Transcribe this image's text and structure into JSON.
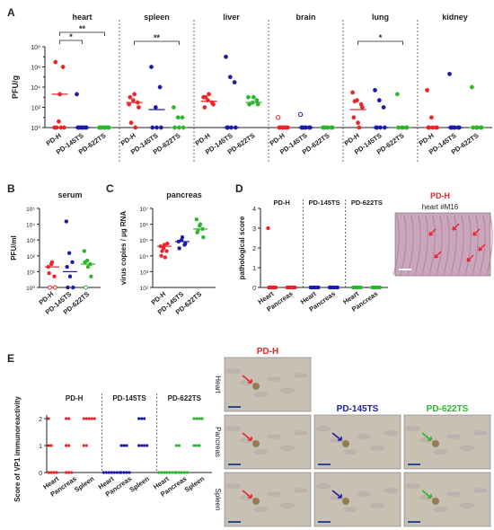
{
  "colors": {
    "red": "#e8262b",
    "blue": "#1c1ca8",
    "green": "#2fb52f",
    "axis": "#222222",
    "photo_bg": "#c9a6bc",
    "ihc_bg": "#c9c0b4"
  },
  "panels": {
    "A": "A",
    "B": "B",
    "C": "C",
    "D": "D",
    "E": "E"
  },
  "chart_data": [
    {
      "type": "scatter",
      "panel": "A",
      "ylabel": "PFU/g",
      "yscale": "log",
      "ylim": [
        1,
        100000000.0
      ],
      "y_ticks": [
        "10⁰",
        "10²",
        "10⁴",
        "10⁶",
        "10⁸"
      ],
      "y_tick_values": [
        1,
        100,
        10000,
        1000000,
        100000000
      ],
      "categories": [
        "PD-H",
        "PD-145TS",
        "PD-622TS"
      ],
      "organs": [
        {
          "name": "heart",
          "groups": [
            [
              1,
              4,
              1000000.0,
              3000000.0,
              2000.0,
              1,
              1,
              1
            ],
            [
              2000.0,
              1,
              1,
              1,
              1,
              1,
              1,
              1
            ],
            [
              1,
              1,
              1,
              1,
              1,
              1,
              1,
              1
            ]
          ],
          "medians": [
            2000.0,
            1,
            1
          ],
          "sig": [
            {
              "from": 0,
              "to": 1,
              "mark": "*"
            },
            {
              "from": 0,
              "to": 2,
              "mark": "**"
            }
          ]
        },
        {
          "name": "spleen",
          "groups": [
            [
              200.0,
              500.0,
              300.0,
              1000.0,
              2000.0,
              100.0,
              3,
              1
            ],
            [
              1000000.0,
              100.0,
              10000.0,
              1,
              1,
              1
            ],
            [
              100.0,
              10,
              10,
              1,
              1,
              1
            ]
          ],
          "medians": [
            300.0,
            60,
            1
          ],
          "sig": [
            {
              "from": 0,
              "to": 2,
              "mark": "**"
            }
          ]
        },
        {
          "name": "liver",
          "groups": [
            [
              1000.0,
              500.0,
              300.0,
              100.0,
              2000.0,
              200.0,
              1000.0
            ],
            [
              10000000.0,
              100000.0,
              30000.0,
              1,
              1,
              1,
              1
            ],
            [
              1000.0,
              300.0,
              500.0,
              200.0,
              1000.0,
              200.0
            ]
          ],
          "medians": [
            400.0,
            1,
            300.0
          ],
          "sig": []
        },
        {
          "name": "brain",
          "groups": [
            [
              10,
              1,
              1,
              1,
              1,
              1,
              1,
              1
            ],
            [
              20.0,
              1,
              1,
              1,
              1,
              1,
              1
            ],
            [
              1,
              1,
              1,
              1,
              1,
              1,
              1
            ]
          ],
          "medians": [
            1,
            1,
            1
          ],
          "sig": []
        },
        {
          "name": "lung",
          "groups": [
            [
              3000.0,
              500.0,
              200.0,
              10,
              3,
              100.0,
              400.0,
              1
            ],
            [
              5000.0,
              500.0,
              100.0,
              1,
              1,
              1,
              1
            ],
            [
              2000.0,
              1,
              1,
              1,
              1,
              1
            ]
          ],
          "medians": [
            60,
            1,
            1
          ],
          "sig": [
            {
              "from": 0,
              "to": 2,
              "mark": "*"
            }
          ]
        },
        {
          "name": "kidney",
          "groups": [
            [
              5000.0,
              10,
              1,
              1,
              1,
              1,
              1
            ],
            [
              200000.0,
              1,
              1,
              1,
              1,
              1,
              1
            ],
            [
              10000.0,
              1,
              1,
              1,
              1,
              1
            ]
          ],
          "medians": [
            1,
            1,
            1
          ],
          "sig": []
        }
      ]
    },
    {
      "type": "scatter",
      "panel": "B",
      "title": "serum",
      "ylabel": "PFU/ml",
      "yscale": "log",
      "ylim": [
        1,
        100000.0
      ],
      "y_ticks": [
        "10⁰",
        "10¹",
        "10²",
        "10³",
        "10⁴",
        "10⁵"
      ],
      "y_tick_values": [
        1,
        10,
        100,
        1000,
        10000,
        100000
      ],
      "categories": [
        "PD-H",
        "PD-145TS",
        "PD-622TS"
      ],
      "groups": [
        [
          20,
          30,
          5,
          8,
          40,
          1,
          1
        ],
        [
          15000.0,
          150,
          40,
          20,
          5,
          1,
          1
        ],
        [
          200,
          50,
          30,
          40,
          20,
          5,
          1
        ]
      ],
      "medians": [
        20,
        10,
        30
      ]
    },
    {
      "type": "scatter",
      "panel": "C",
      "title": "pancreas",
      "ylabel": "virus copies / µg RNA",
      "yscale": "log",
      "ylim": [
        100,
        10000000.0
      ],
      "y_ticks": [
        "10²",
        "10³",
        "10⁴",
        "10⁵",
        "10⁶",
        "10⁷"
      ],
      "y_tick_values": [
        100,
        1000,
        10000,
        100000,
        1000000,
        10000000
      ],
      "categories": [
        "PD-H",
        "PD-145TS",
        "PD-622TS"
      ],
      "groups": [
        [
          40000.0,
          30000.0,
          20000.0,
          10000.0,
          50000.0,
          60000.0,
          20000.0,
          8000.0
        ],
        [
          80000.0,
          100000.0,
          50000.0,
          30000.0,
          150000.0,
          60000.0
        ],
        [
          2000000.0,
          800000.0,
          500000.0,
          300000.0,
          1000000.0,
          150000.0,
          400000.0
        ]
      ],
      "medians": [
        40000.0,
        80000.0,
        500000.0
      ]
    },
    {
      "type": "scatter",
      "panel": "D",
      "ylabel": "pathological score",
      "ylim": [
        0,
        4
      ],
      "y_ticks": [
        "0",
        "1",
        "2",
        "3",
        "4"
      ],
      "y_tick_values": [
        0,
        1,
        2,
        3,
        4
      ],
      "group_labels": [
        "PD-H",
        "PD-145TS",
        "PD-622TS"
      ],
      "tissues": [
        "Heart",
        "Pancreas"
      ],
      "groups": [
        [
          [
            3,
            0,
            0,
            0,
            0,
            0,
            0,
            0
          ],
          [
            0,
            0,
            0,
            0,
            0,
            0,
            0,
            0
          ]
        ],
        [
          [
            0,
            0,
            0,
            0,
            0,
            0,
            0
          ],
          [
            0,
            0,
            0,
            0,
            0,
            0,
            0
          ]
        ],
        [
          [
            0,
            0,
            0,
            0,
            0,
            0,
            0
          ],
          [
            0,
            0,
            0,
            0,
            0,
            0,
            0
          ]
        ]
      ]
    },
    {
      "type": "scatter",
      "panel": "E",
      "ylabel": "Score of VP1 immunoreactivity",
      "ylim": [
        0,
        2
      ],
      "y_ticks": [
        "0",
        "1",
        "2"
      ],
      "y_tick_values": [
        0,
        1,
        2
      ],
      "group_labels": [
        "PD-H",
        "PD-145TS",
        "PD-622TS"
      ],
      "tissues": [
        "Heart",
        "Pancreas",
        "Spleen"
      ],
      "groups": [
        [
          [
            2,
            1,
            1,
            0,
            0,
            0,
            0
          ],
          [
            2,
            1,
            1,
            0,
            0,
            0,
            2
          ],
          [
            2,
            2,
            2,
            2,
            2,
            1,
            1
          ]
        ],
        [
          [
            0,
            0,
            0,
            0,
            0,
            0,
            0
          ],
          [
            1,
            1,
            1,
            0,
            0,
            0,
            0
          ],
          [
            2,
            2,
            2,
            1,
            1,
            1,
            1
          ]
        ],
        [
          [
            0,
            0,
            0,
            0,
            0,
            0,
            0
          ],
          [
            1,
            1,
            0,
            0,
            0,
            0,
            0
          ],
          [
            2,
            2,
            2,
            2,
            1,
            1,
            1
          ]
        ]
      ]
    }
  ],
  "photos": {
    "d_title": "PD-H",
    "d_subtitle": "heart #M16",
    "e_groups": [
      "PD-H",
      "PD-145TS",
      "PD-622TS"
    ],
    "e_rows": [
      "Heart",
      "Pancreas",
      "Spleen"
    ]
  }
}
